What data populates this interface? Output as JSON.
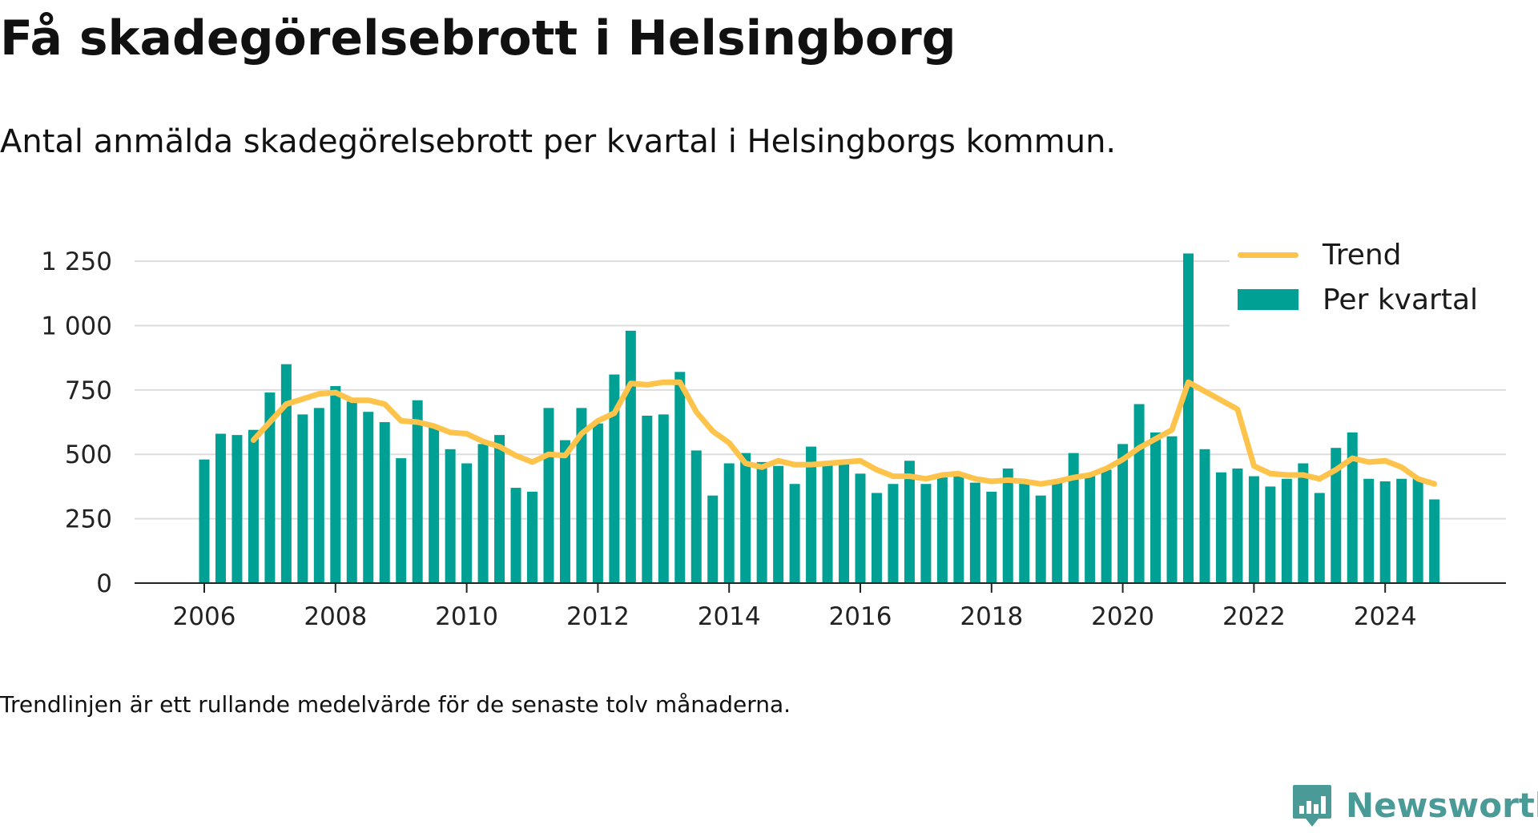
{
  "title": "Få skadegörelsebrott i Helsingborg",
  "subtitle": "Antal anmälda skadegörelsebrott per kvartal i Helsingborgs kommun.",
  "note": "Trendlinjen är ett rullande medelvärde för de senaste tolv månaderna.",
  "brand": {
    "name": "Newsworthy",
    "color": "#4a9b97"
  },
  "legend": {
    "trend_label": "Trend",
    "bars_label": "Per kvartal"
  },
  "colors": {
    "bars": "#00a194",
    "trend": "#fec34b",
    "grid": "#dddddd",
    "axis": "#222222"
  },
  "chart_data": {
    "type": "bar",
    "first_quarter": "2006-Q1",
    "x_ticks": [
      "2006",
      "2008",
      "2010",
      "2012",
      "2014",
      "2016",
      "2018",
      "2020",
      "2022",
      "2024"
    ],
    "y_ticks": [
      {
        "value": 0,
        "label": "0"
      },
      {
        "value": 250,
        "label": "250"
      },
      {
        "value": 500,
        "label": "500"
      },
      {
        "value": 750,
        "label": "750"
      },
      {
        "value": 1000,
        "label": "1 000"
      },
      {
        "value": 1250,
        "label": "1 250"
      }
    ],
    "ylim": [
      0,
      1300
    ],
    "grid": true,
    "legend_position": "top-right",
    "series": [
      {
        "name": "Per kvartal",
        "type": "bar",
        "values": [
          480,
          580,
          575,
          595,
          740,
          850,
          655,
          680,
          765,
          705,
          665,
          625,
          485,
          710,
          610,
          520,
          465,
          540,
          575,
          370,
          355,
          680,
          555,
          680,
          620,
          810,
          980,
          650,
          655,
          820,
          515,
          340,
          465,
          505,
          470,
          455,
          385,
          530,
          470,
          470,
          425,
          350,
          385,
          475,
          385,
          420,
          425,
          390,
          355,
          445,
          390,
          340,
          395,
          505,
          420,
          440,
          540,
          695,
          585,
          570,
          1280,
          520,
          430,
          445,
          415,
          375,
          405,
          465,
          350,
          525,
          585,
          405,
          395,
          405,
          405,
          325
        ]
      },
      {
        "name": "Trend",
        "type": "line",
        "values": [
          null,
          null,
          null,
          555,
          625,
          695,
          715,
          735,
          740,
          710,
          710,
          695,
          630,
          625,
          610,
          585,
          580,
          550,
          530,
          495,
          470,
          500,
          495,
          580,
          630,
          660,
          775,
          770,
          780,
          780,
          665,
          590,
          545,
          465,
          450,
          475,
          460,
          460,
          465,
          470,
          475,
          440,
          415,
          415,
          405,
          420,
          425,
          405,
          395,
          400,
          395,
          385,
          395,
          410,
          420,
          445,
          480,
          525,
          560,
          595,
          780,
          745,
          710,
          675,
          455,
          425,
          420,
          420,
          405,
          440,
          485,
          470,
          475,
          450,
          405,
          385
        ]
      }
    ]
  }
}
